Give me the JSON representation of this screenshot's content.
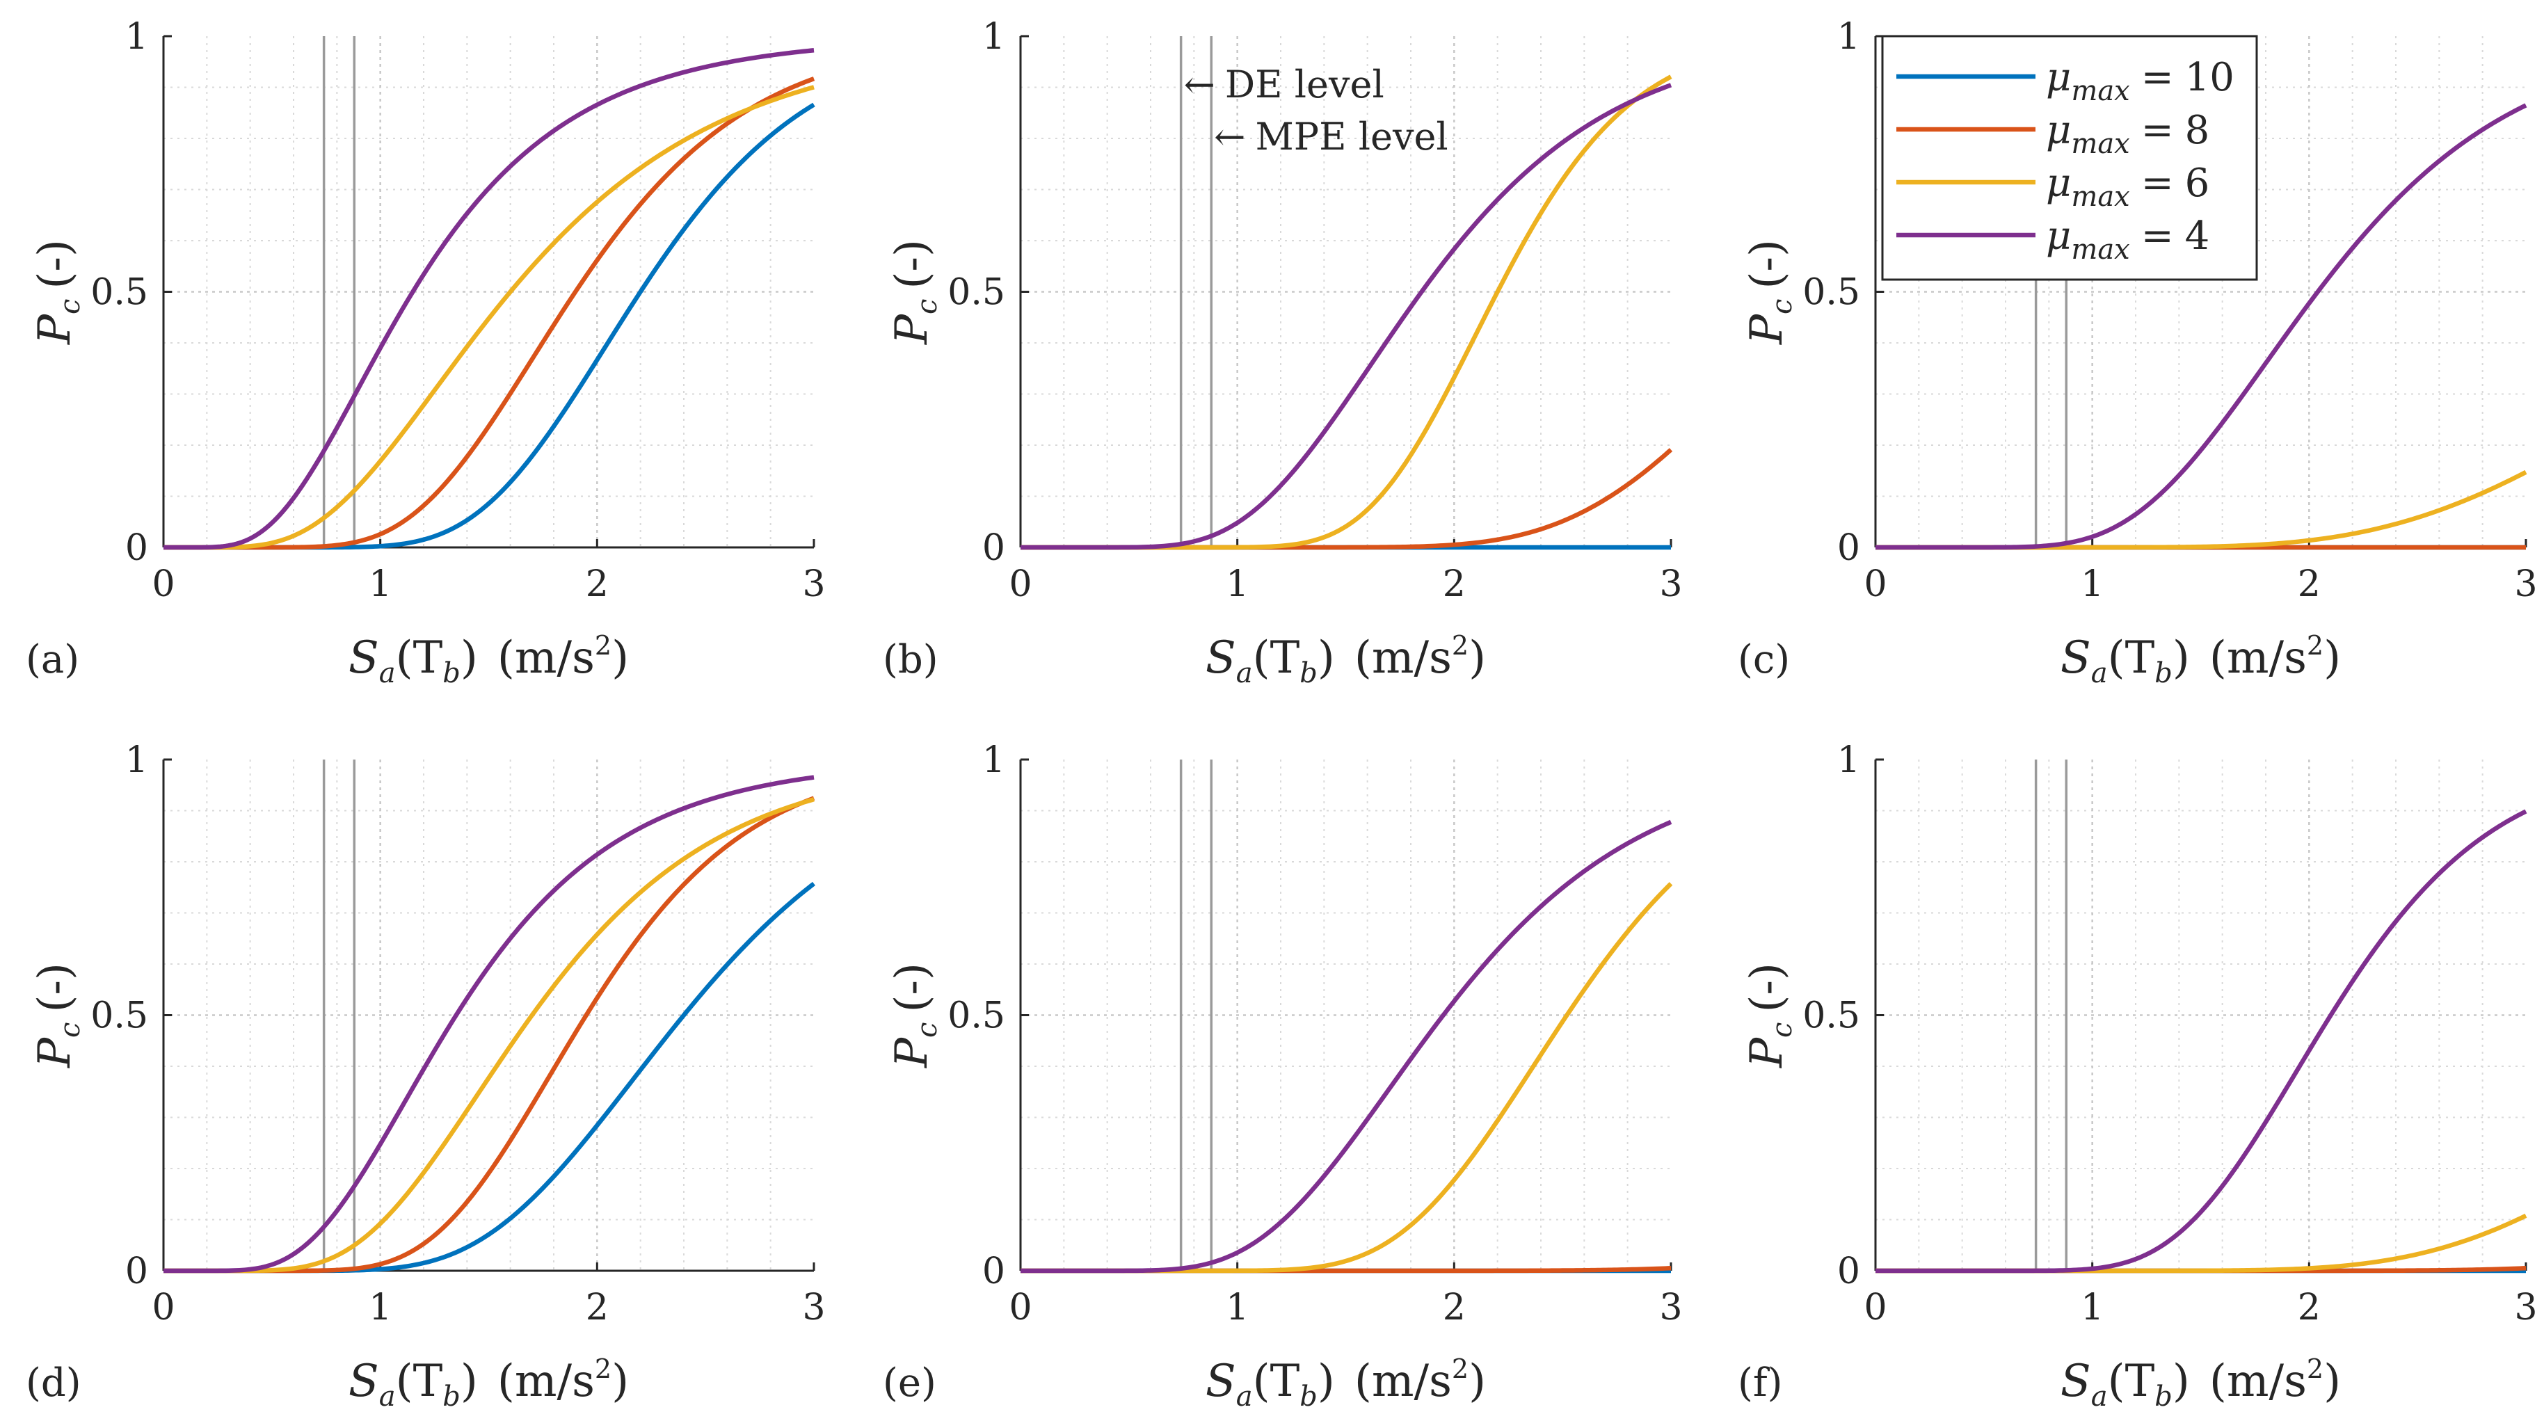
{
  "chart_data": {
    "type": "line",
    "x_axis": {
      "label_main": "S",
      "label_sub": "a",
      "label_arg_open": "(T",
      "label_arg_sub": "b",
      "label_arg_close": ")",
      "label_units_open": "(m/s",
      "label_units_sup": "2",
      "label_units_close": ")",
      "xlim": [
        0,
        3
      ],
      "ticks": [
        "0",
        "1",
        "2",
        "3"
      ]
    },
    "y_axis": {
      "label_main": "P",
      "label_sub": "c",
      "label_units": "(-)",
      "ylim": [
        0,
        1
      ],
      "ticks": [
        "0",
        "0.5",
        "1"
      ]
    },
    "reference_lines": {
      "de_level_x": 0.74,
      "mpe_level_x": 0.88,
      "de_label": "DE level",
      "mpe_label": "MPE level",
      "arrow": "←"
    },
    "legend": {
      "symbol": "μ",
      "subscript": "max",
      "equals": "=",
      "entries": [
        {
          "value": "10",
          "color": "#0072BD"
        },
        {
          "value": "8",
          "color": "#D95319"
        },
        {
          "value": "6",
          "color": "#EDB120"
        },
        {
          "value": "4",
          "color": "#7E2F8E"
        }
      ]
    },
    "panels": [
      {
        "label": "(a)",
        "series": [
          {
            "name": "μmax = 10",
            "median": 2.2,
            "beta": 0.28
          },
          {
            "name": "μmax = 8",
            "median": 1.9,
            "beta": 0.33
          },
          {
            "name": "μmax = 6",
            "median": 1.6,
            "beta": 0.49
          },
          {
            "name": "μmax = 4",
            "median": 1.15,
            "beta": 0.5
          }
        ]
      },
      {
        "label": "(b)",
        "series": [
          {
            "name": "μmax = 10",
            "median": 12.0,
            "beta": 0.15
          },
          {
            "name": "μmax = 8",
            "median": 3.7,
            "beta": 0.24
          },
          {
            "name": "μmax = 6",
            "median": 2.2,
            "beta": 0.22
          },
          {
            "name": "μmax = 4",
            "median": 1.85,
            "beta": 0.37
          }
        ]
      },
      {
        "label": "(c)",
        "series": [
          {
            "name": "μmax = 10",
            "median": 12.0,
            "beta": 0.15
          },
          {
            "name": "μmax = 8",
            "median": 12.0,
            "beta": 0.15
          },
          {
            "name": "μmax = 6",
            "median": 4.33,
            "beta": 0.35
          },
          {
            "name": "μmax = 4",
            "median": 2.04,
            "beta": 0.35
          }
        ]
      },
      {
        "label": "(d)",
        "series": [
          {
            "name": "μmax = 10",
            "median": 2.4,
            "beta": 0.32
          },
          {
            "name": "μmax = 8",
            "median": 1.95,
            "beta": 0.3
          },
          {
            "name": "μmax = 6",
            "median": 1.7,
            "beta": 0.4
          },
          {
            "name": "μmax = 4",
            "median": 1.35,
            "beta": 0.44
          }
        ]
      },
      {
        "label": "(e)",
        "series": [
          {
            "name": "μmax = 10",
            "median": 12.0,
            "beta": 0.15
          },
          {
            "name": "μmax = 8",
            "median": 6.0,
            "beta": 0.27
          },
          {
            "name": "μmax = 6",
            "median": 2.52,
            "beta": 0.25
          },
          {
            "name": "μmax = 4",
            "median": 1.95,
            "beta": 0.37
          }
        ]
      },
      {
        "label": "(f)",
        "series": [
          {
            "name": "μmax = 10",
            "median": 12.0,
            "beta": 0.15
          },
          {
            "name": "μmax = 8",
            "median": 6.0,
            "beta": 0.27
          },
          {
            "name": "μmax = 6",
            "median": 4.35,
            "beta": 0.3
          },
          {
            "name": "μmax = 4",
            "median": 2.1,
            "beta": 0.28
          }
        ]
      }
    ]
  }
}
